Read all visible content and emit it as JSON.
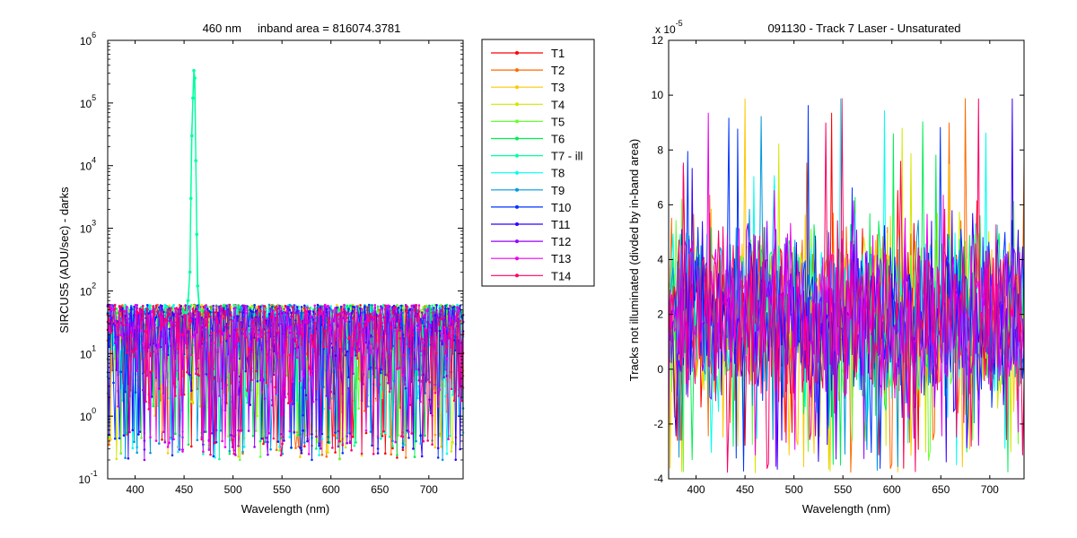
{
  "chart_data": [
    {
      "type": "line",
      "title": "460 nm     inband area = 816074.3781",
      "xlabel": "Wavelength (nm)",
      "ylabel": "SIRCUS5  (ADU/sec) - darks",
      "xlim": [
        372,
        735
      ],
      "ylim": [
        0.1,
        1000000
      ],
      "yscale": "log",
      "xticks": [
        400,
        450,
        500,
        550,
        600,
        650,
        700
      ],
      "xtick_labels": [
        "400",
        "450",
        "500",
        "550",
        "600",
        "650",
        "700"
      ],
      "ytick_values": [
        0.1,
        1,
        10,
        100,
        1000,
        10000,
        100000,
        1000000
      ],
      "ytick_labels": [
        {
          "base": "10",
          "exp": "-1"
        },
        {
          "base": "10",
          "exp": "0"
        },
        {
          "base": "10",
          "exp": "1"
        },
        {
          "base": "10",
          "exp": "2"
        },
        {
          "base": "10",
          "exp": "3"
        },
        {
          "base": "10",
          "exp": "4"
        },
        {
          "base": "10",
          "exp": "5"
        },
        {
          "base": "10",
          "exp": "6"
        }
      ],
      "marker": "dot",
      "noise_band": [
        0.2,
        60
      ],
      "noise_typical": 20,
      "x_step": 1.5,
      "peak": {
        "series": "T7 - ill",
        "x": [
          452,
          454,
          456,
          457,
          458,
          459,
          460,
          461,
          462,
          463,
          464,
          466
        ],
        "y": [
          45,
          70,
          200,
          3000,
          30000,
          120000,
          330000,
          250000,
          12000,
          800,
          120,
          50
        ]
      },
      "legend": {
        "location": "outside-right"
      },
      "series": [
        {
          "name": "T1",
          "color": "#ff0000"
        },
        {
          "name": "T2",
          "color": "#ff6a00"
        },
        {
          "name": "T3",
          "color": "#ffc800"
        },
        {
          "name": "T4",
          "color": "#d4e600"
        },
        {
          "name": "T5",
          "color": "#66ff33"
        },
        {
          "name": "T6",
          "color": "#00ee55"
        },
        {
          "name": "T7 - ill",
          "color": "#00ffa0"
        },
        {
          "name": "T8",
          "color": "#00ffee"
        },
        {
          "name": "T9",
          "color": "#0099dd"
        },
        {
          "name": "T10",
          "color": "#0033ff"
        },
        {
          "name": "T11",
          "color": "#3300ff"
        },
        {
          "name": "T12",
          "color": "#9900ff"
        },
        {
          "name": "T13",
          "color": "#ee00ee"
        },
        {
          "name": "T14",
          "color": "#ff0066"
        }
      ]
    },
    {
      "type": "line",
      "title": "091130 - Track 7 Laser - Unsaturated",
      "xlabel": "Wavelength (nm)",
      "ylabel": "Tracks not illuminated (divded by in-band area)",
      "xlim": [
        372,
        735
      ],
      "ylim": [
        -4,
        12
      ],
      "yscale": "linear",
      "y_multiplier": {
        "base": "x 10",
        "exp": "-5"
      },
      "xticks": [
        400,
        450,
        500,
        550,
        600,
        650,
        700
      ],
      "xtick_labels": [
        "400",
        "450",
        "500",
        "550",
        "600",
        "650",
        "700"
      ],
      "yticks": [
        -4,
        -2,
        0,
        2,
        4,
        6,
        8,
        10,
        12
      ],
      "ytick_labels": [
        "-4",
        "-2",
        "0",
        "2",
        "4",
        "6",
        "8",
        "10",
        "12"
      ],
      "noise_band": [
        -3.8,
        10
      ],
      "noise_typical": 2,
      "x_step": 1.5,
      "series": [
        {
          "name": "T1",
          "color": "#ff0000"
        },
        {
          "name": "T2",
          "color": "#ff6a00"
        },
        {
          "name": "T3",
          "color": "#ffc800"
        },
        {
          "name": "T4",
          "color": "#d4e600"
        },
        {
          "name": "T5",
          "color": "#66ff33"
        },
        {
          "name": "T6",
          "color": "#00ee55"
        },
        {
          "name": "T8",
          "color": "#00ffee"
        },
        {
          "name": "T9",
          "color": "#0099dd"
        },
        {
          "name": "T10",
          "color": "#0033ff"
        },
        {
          "name": "T11",
          "color": "#3300ff"
        },
        {
          "name": "T12",
          "color": "#9900ff"
        },
        {
          "name": "T13",
          "color": "#ee00ee"
        },
        {
          "name": "T14",
          "color": "#ff0066"
        }
      ]
    }
  ]
}
